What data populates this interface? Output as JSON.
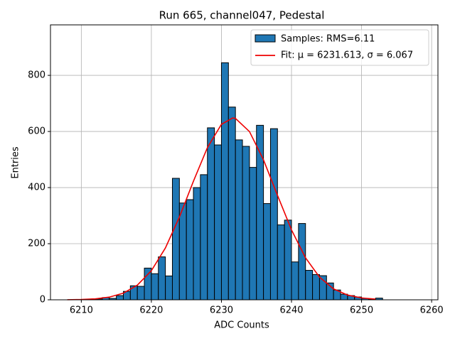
{
  "chart_data": {
    "type": "histogram",
    "title": "Run 665, channel047, Pedestal",
    "xlabel": "ADC Counts",
    "ylabel": "Entries",
    "bins": [
      6211,
      6212,
      6213,
      6214,
      6215,
      6216,
      6217,
      6218,
      6219,
      6220,
      6221,
      6222,
      6223,
      6224,
      6225,
      6226,
      6227,
      6228,
      6229,
      6230,
      6231,
      6232,
      6233,
      6234,
      6235,
      6236,
      6237,
      6238,
      6239,
      6240,
      6241,
      6242,
      6243,
      6244,
      6245,
      6246,
      6247,
      6248,
      6249,
      6250,
      6251,
      6252,
      6253
    ],
    "counts": [
      1,
      3,
      8,
      5,
      15,
      30,
      50,
      48,
      113,
      93,
      153,
      85,
      433,
      345,
      357,
      400,
      446,
      613,
      552,
      845,
      687,
      570,
      547,
      472,
      622,
      343,
      610,
      267,
      284,
      135,
      272,
      105,
      90,
      86,
      60,
      35,
      20,
      15,
      10,
      5,
      2,
      6
    ],
    "name": "Samples: RMS=6.11",
    "color": "#1f77b4",
    "fit": {
      "name": "Fit: μ = 6231.613, σ = 6.067",
      "color": "#ee0000",
      "x": [
        6208,
        6210,
        6212,
        6214,
        6216,
        6218,
        6220,
        6222,
        6224,
        6226,
        6228,
        6230,
        6231.6,
        6232,
        6234,
        6236,
        6238,
        6240,
        6242,
        6244,
        6246,
        6248,
        6250,
        6252
      ],
      "y": [
        0.33,
        1.1,
        3.5,
        9.6,
        23.6,
        52.3,
        103.7,
        184.7,
        295.0,
        422.4,
        542.7,
        625.5,
        648,
        646.7,
        599.7,
        499.0,
        372.4,
        249.2,
        149.7,
        80.7,
        38.9,
        16.9,
        6.6,
        2.3
      ]
    },
    "xlim": [
      6205.6,
      6260.9
    ],
    "ylim": [
      0,
      980
    ],
    "xticks": [
      6210,
      6220,
      6230,
      6240,
      6250,
      6260
    ],
    "yticks": [
      0,
      200,
      400,
      600,
      800
    ],
    "grid": true,
    "legend": "upper right"
  }
}
